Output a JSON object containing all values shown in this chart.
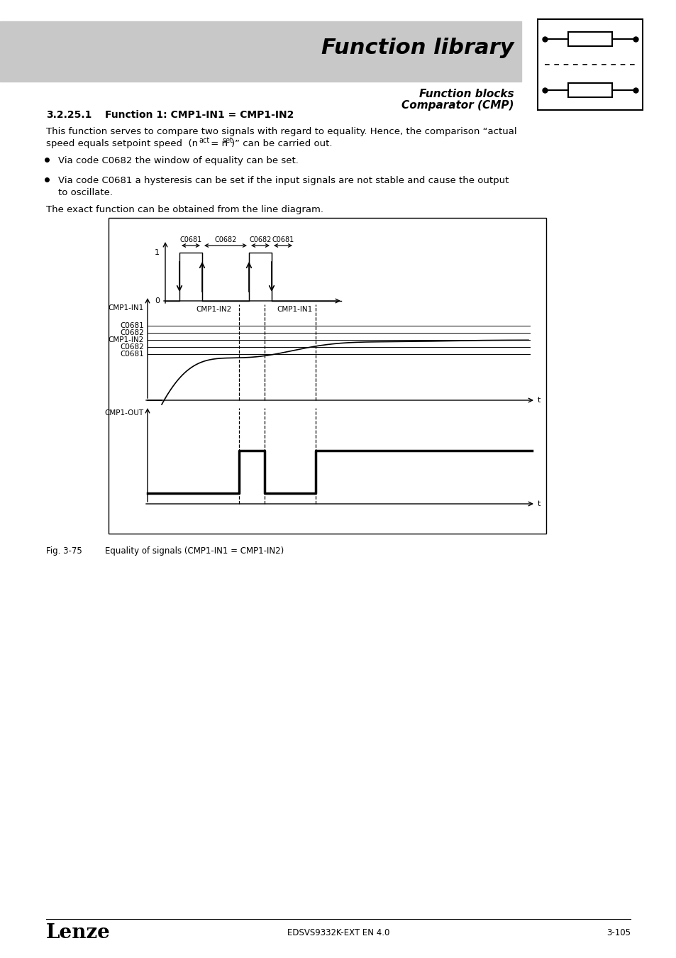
{
  "page_title": "Function library",
  "subtitle1": "Function blocks",
  "subtitle2": "Comparator (CMP)",
  "section": "3.2.25.1",
  "section_title": "Function 1: CMP1-IN1 = CMP1-IN2",
  "body_line1": "This function serves to compare two signals with regard to equality. Hence, the comparison “actual",
  "body_line2": "speed equals setpoint speed  (n",
  "body_line2b": "act",
  "body_line2c": " = n",
  "body_line2d": "set",
  "body_line2e": ")” can be carried out.",
  "bullet1": "Via code C0682 the window of equality can be set.",
  "bullet2a": "Via code C0681 a hysteresis can be set if the input signals are not stable and cause the output",
  "bullet2b": "to oscillate.",
  "exact_text": "The exact function can be obtained from the line diagram.",
  "fig_label": "Fig. 3-75",
  "fig_caption": "Equality of signals (CMP1-IN1 = CMP1-IN2)",
  "footer_left": "Lenze",
  "footer_center": "EDSVS9332K-EXT EN 4.0",
  "footer_right": "3-105",
  "bg_color": "#ffffff",
  "header_bg": "#c8c8c8",
  "step_labels": [
    "C0681",
    "C0682",
    "C0682",
    "C0681"
  ],
  "ref_labels": [
    "CMP1-IN1",
    "C0681",
    "C0682",
    "CMP1-IN2",
    "C0682",
    "C0681"
  ],
  "xaxis_labels": [
    "CMP1-IN2",
    "CMP1-IN1"
  ]
}
